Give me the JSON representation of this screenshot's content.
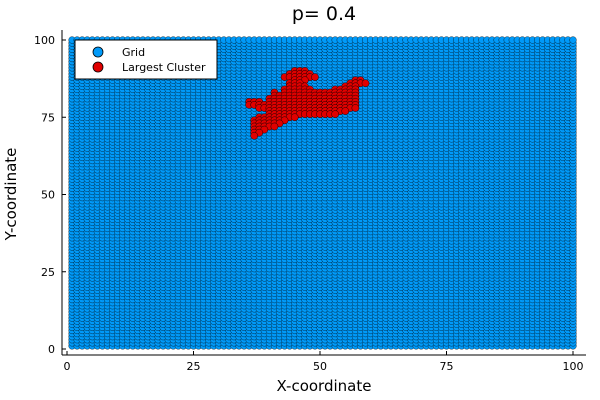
{
  "chart_data": {
    "type": "scatter",
    "title": "p= 0.4",
    "xlabel": "X-coordinate",
    "ylabel": "Y-coordinate",
    "xlim": [
      0,
      100
    ],
    "ylim": [
      0,
      100
    ],
    "xticks": [
      0,
      25,
      50,
      75,
      100
    ],
    "yticks": [
      0,
      25,
      50,
      75,
      100
    ],
    "grid": false,
    "legend_position": "top-left",
    "series": [
      {
        "name": "Grid",
        "color": "#009af9",
        "description_of_points": "every integer lattice point (x, y) with 1 <= x <= 100 and 1 <= y <= 100",
        "x_range": [
          1,
          100
        ],
        "y_range": [
          1,
          100
        ],
        "step": 1
      },
      {
        "name": "Largest Cluster",
        "color": "#e00000",
        "runs": [
          {
            "y": 90,
            "x": [
              45,
              47
            ]
          },
          {
            "y": 89,
            "x": [
              44,
              48
            ]
          },
          {
            "y": 88,
            "x": [
              43,
              49
            ]
          },
          {
            "y": 87,
            "x": [
              45,
              47
            ]
          },
          {
            "y": 87,
            "x": [
              57,
              58
            ]
          },
          {
            "y": 86,
            "x": [
              44,
              46
            ]
          },
          {
            "y": 86,
            "x": [
              56,
              59
            ]
          },
          {
            "y": 85,
            "x": [
              44,
              47
            ]
          },
          {
            "y": 85,
            "x": [
              55,
              57
            ]
          },
          {
            "y": 84,
            "x": [
              43,
              48
            ]
          },
          {
            "y": 84,
            "x": [
              53,
              57
            ]
          },
          {
            "y": 83,
            "x": [
              41,
              41
            ]
          },
          {
            "y": 83,
            "x": [
              43,
              57
            ]
          },
          {
            "y": 82,
            "x": [
              41,
              57
            ]
          },
          {
            "y": 81,
            "x": [
              40,
              57
            ]
          },
          {
            "y": 80,
            "x": [
              36,
              38
            ]
          },
          {
            "y": 80,
            "x": [
              40,
              57
            ]
          },
          {
            "y": 79,
            "x": [
              36,
              57
            ]
          },
          {
            "y": 78,
            "x": [
              38,
              57
            ]
          },
          {
            "y": 77,
            "x": [
              40,
              55
            ]
          },
          {
            "y": 76,
            "x": [
              40,
              53
            ]
          },
          {
            "y": 75,
            "x": [
              38,
              45
            ]
          },
          {
            "y": 74,
            "x": [
              37,
              43
            ]
          },
          {
            "y": 73,
            "x": [
              37,
              42
            ]
          },
          {
            "y": 72,
            "x": [
              37,
              41
            ]
          },
          {
            "y": 71,
            "x": [
              37,
              39
            ]
          },
          {
            "y": 70,
            "x": [
              37,
              38
            ]
          },
          {
            "y": 69,
            "x": [
              37,
              37
            ]
          }
        ]
      }
    ]
  }
}
